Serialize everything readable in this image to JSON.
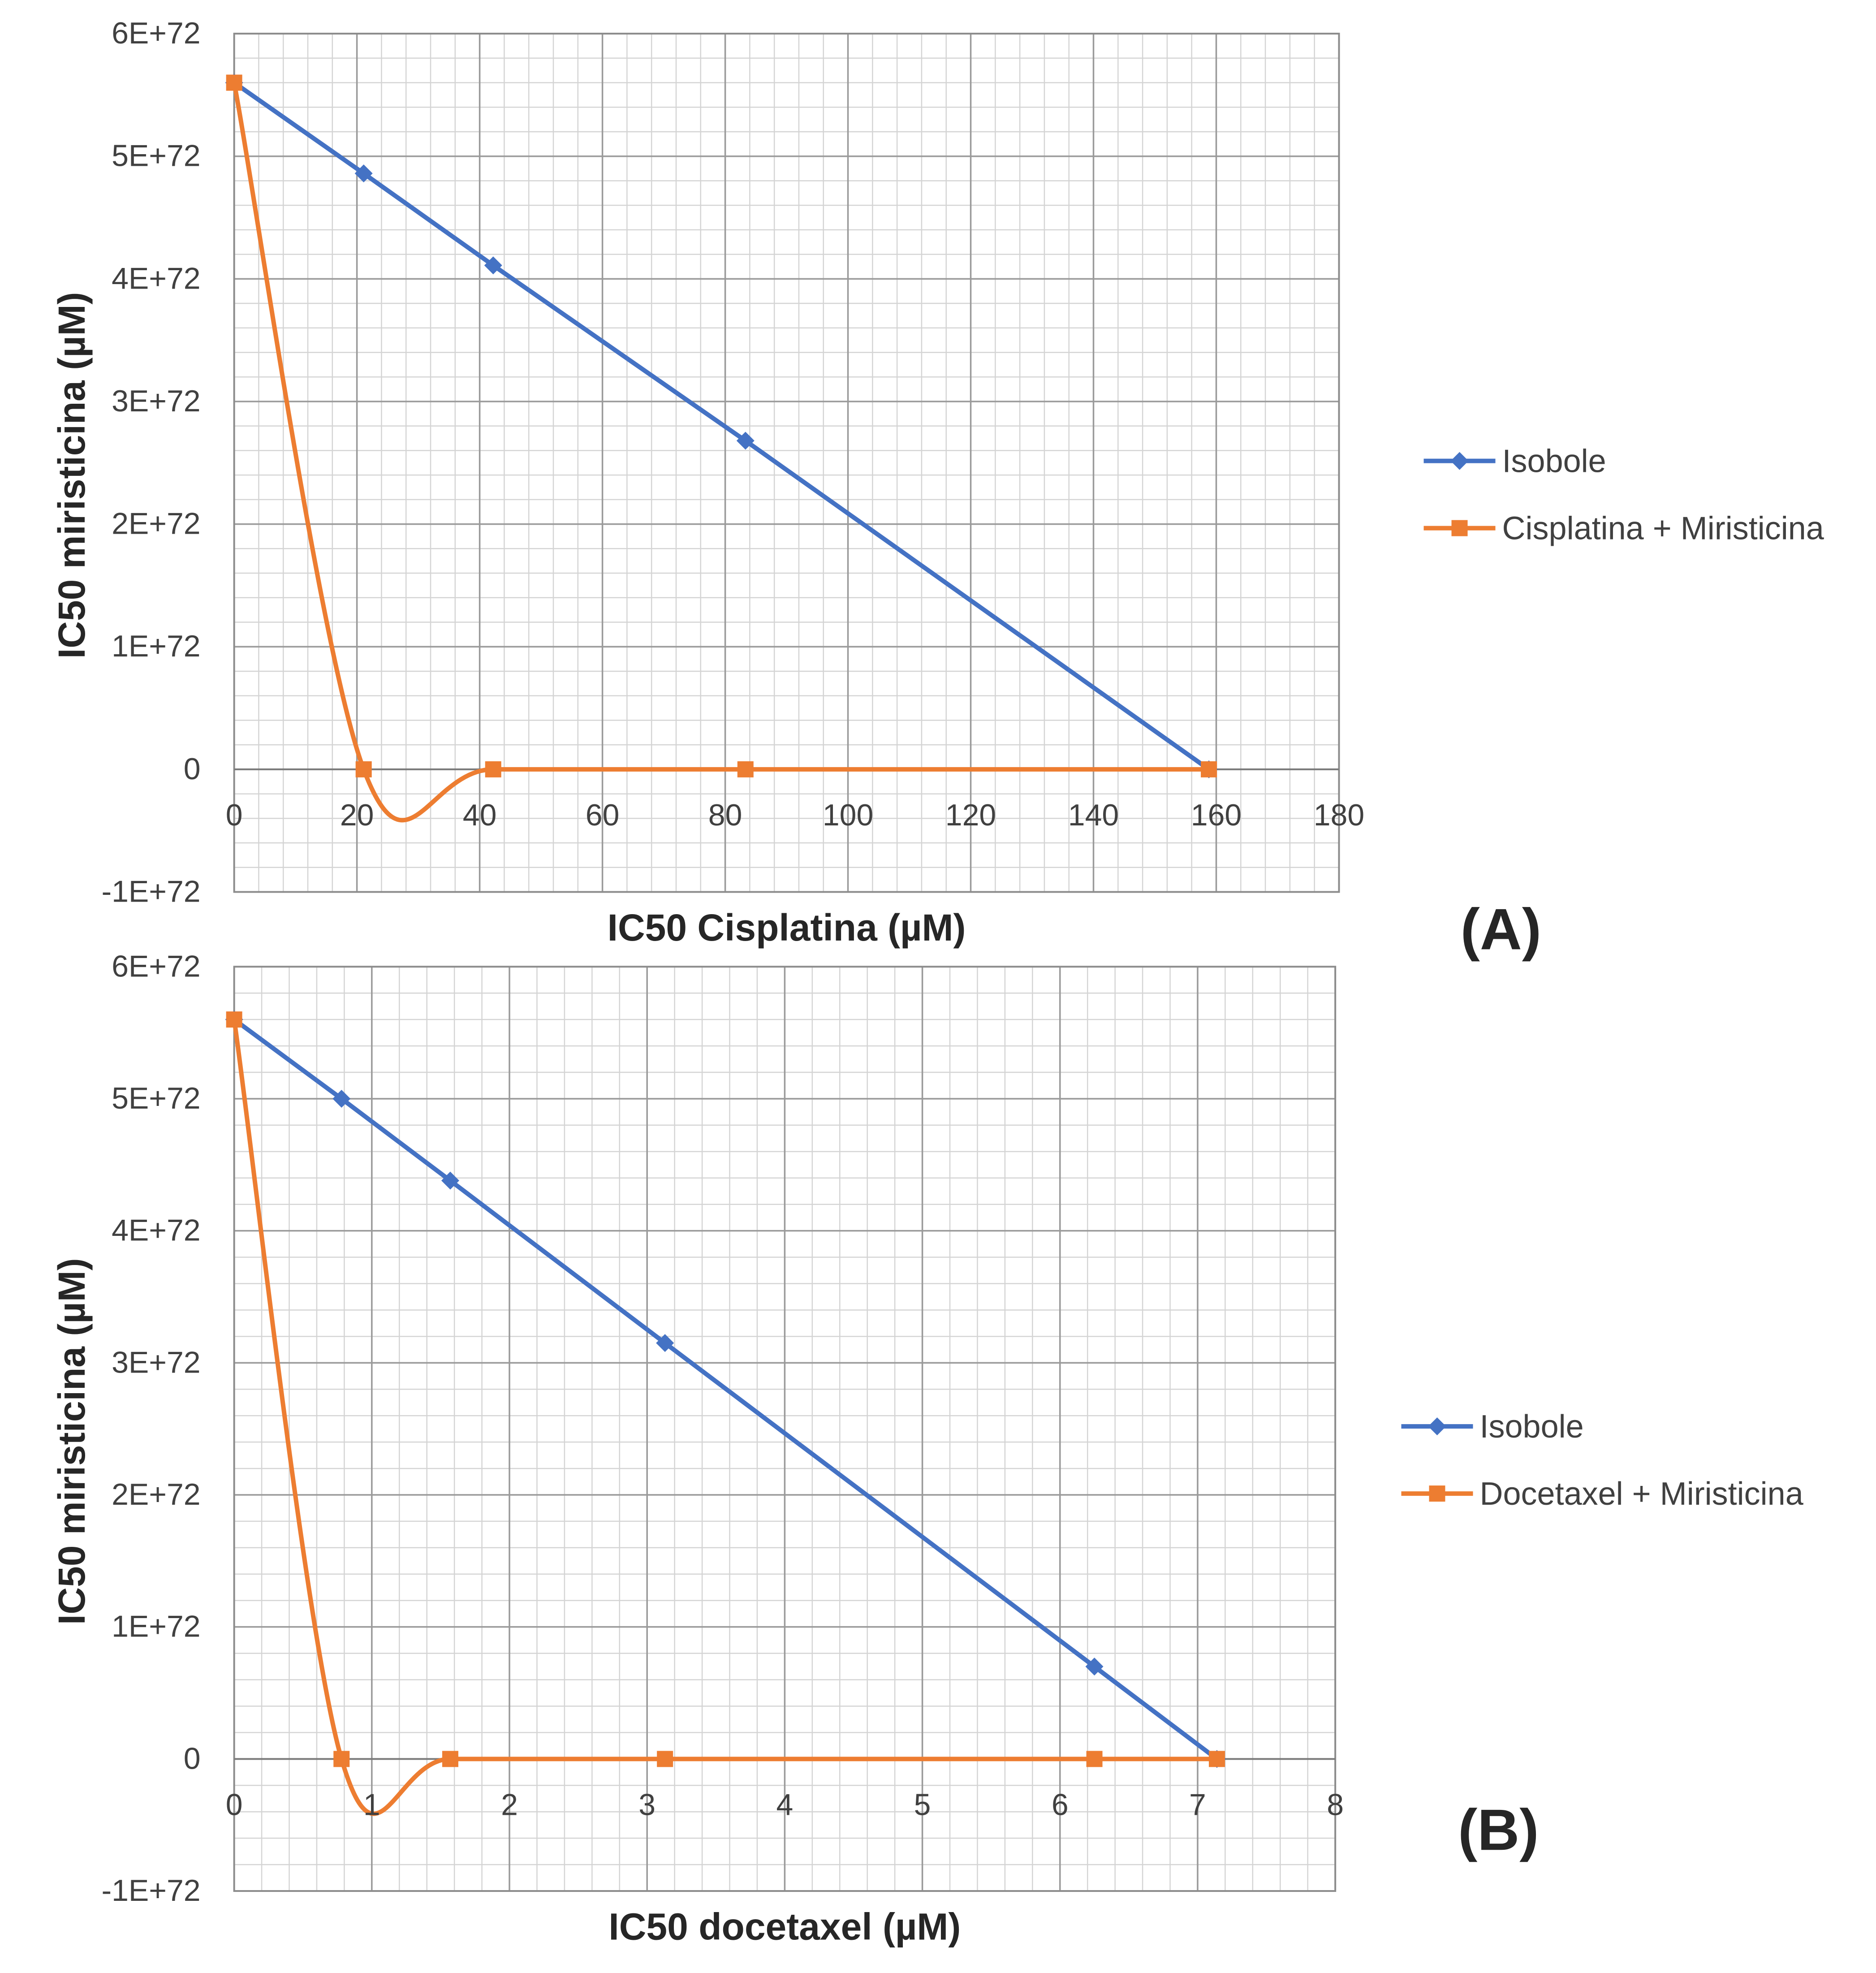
{
  "chart_data": [
    {
      "type": "line",
      "panel_label": "(A)",
      "xlabel": "IC50 Cisplatina (µM)",
      "ylabel": "IC50 miristicina (µM)",
      "xlim": [
        0,
        180
      ],
      "ylim": [
        -1e+72,
        6e+72
      ],
      "x_ticks": [
        0,
        20,
        40,
        60,
        80,
        100,
        120,
        140,
        160,
        180
      ],
      "x_tick_labels": [
        "0",
        "20",
        "40",
        "60",
        "80",
        "100",
        "120",
        "140",
        "160",
        "180"
      ],
      "y_ticks": [
        -1e+72,
        0,
        1e+72,
        2e+72,
        3e+72,
        4e+72,
        5e+72,
        6e+72
      ],
      "y_tick_labels": [
        "-1E+72",
        "0",
        "1E+72",
        "2E+72",
        "3E+72",
        "4E+72",
        "5E+72",
        "6E+72"
      ],
      "grid": true,
      "legend_position": "right",
      "series": [
        {
          "name": "Isobole",
          "color": "#4472C4",
          "marker": "diamond",
          "smooth": false,
          "x": [
            0,
            21.1,
            42.2,
            83.3,
            158.8
          ],
          "y": [
            5.6e+72,
            4.86e+72,
            4.11e+72,
            2.68e+72,
            0
          ]
        },
        {
          "name": "Cisplatina + Miristicina",
          "color": "#ED7D31",
          "marker": "square",
          "smooth": true,
          "x": [
            0,
            21.1,
            42.2,
            83.3,
            158.8
          ],
          "y": [
            5.6e+72,
            0,
            0,
            0,
            0
          ]
        }
      ]
    },
    {
      "type": "line",
      "panel_label": "(B)",
      "xlabel": "IC50 docetaxel (µM)",
      "ylabel": "IC50 miristicina (µM)",
      "xlim": [
        0,
        8
      ],
      "ylim": [
        -1e+72,
        6e+72
      ],
      "x_ticks": [
        0,
        1,
        2,
        3,
        4,
        5,
        6,
        7,
        8
      ],
      "x_tick_labels": [
        "0",
        "1",
        "2",
        "3",
        "4",
        "5",
        "6",
        "7",
        "8"
      ],
      "y_ticks": [
        -1e+72,
        0,
        1e+72,
        2e+72,
        3e+72,
        4e+72,
        5e+72,
        6e+72
      ],
      "y_tick_labels": [
        "-1E+72",
        "0",
        "1E+72",
        "2E+72",
        "3E+72",
        "4E+72",
        "5E+72",
        "6E+72"
      ],
      "grid": true,
      "legend_position": "right",
      "series": [
        {
          "name": "Isobole",
          "color": "#4472C4",
          "marker": "diamond",
          "smooth": false,
          "x": [
            0,
            0.78,
            1.57,
            3.13,
            6.25,
            7.14
          ],
          "y": [
            5.6e+72,
            5e+72,
            4.38e+72,
            3.15e+72,
            7e+71,
            0
          ]
        },
        {
          "name": "Docetaxel + Miristicina",
          "color": "#ED7D31",
          "marker": "square",
          "smooth": true,
          "x": [
            0,
            0.78,
            1.57,
            3.13,
            6.25,
            7.14
          ],
          "y": [
            5.6e+72,
            0,
            0,
            0,
            0,
            0
          ]
        }
      ]
    }
  ]
}
